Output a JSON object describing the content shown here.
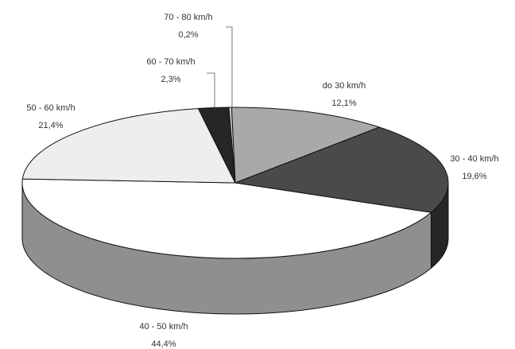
{
  "chart_data": {
    "type": "pie",
    "title": "",
    "unit": "%",
    "slices": [
      {
        "label": "do 30 km/h",
        "value": 12.1,
        "value_text": "12,1%",
        "color": "#a9a9a9",
        "side_color": "#7a7a7a"
      },
      {
        "label": "30 - 40 km/h",
        "value": 19.6,
        "value_text": "19,6%",
        "color": "#4a4a4a",
        "side_color": "#262626"
      },
      {
        "label": "40 - 50 km/h",
        "value": 44.4,
        "value_text": "44,4%",
        "color": "#ffffff",
        "side_color": "#8f8f8f"
      },
      {
        "label": "50 - 60 km/h",
        "value": 21.4,
        "value_text": "21,4%",
        "color": "#eeeeee",
        "side_color": "#b5b5b5"
      },
      {
        "label": "60 - 70 km/h",
        "value": 2.3,
        "value_text": "2,3%",
        "color": "#262626",
        "side_color": "#111111"
      },
      {
        "label": "70 - 80 km/h",
        "value": 0.2,
        "value_text": "0,2%",
        "color": "#d0d0d0",
        "side_color": "#999999"
      }
    ],
    "legend": "none"
  }
}
